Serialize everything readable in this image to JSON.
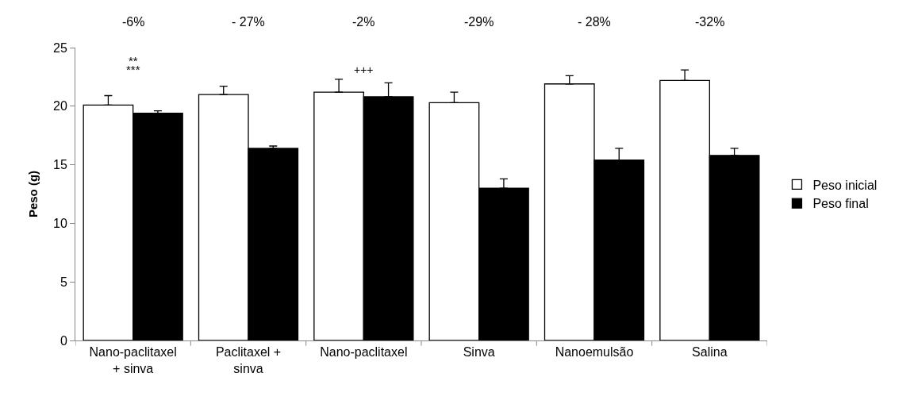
{
  "chart_data": {
    "type": "bar",
    "ylabel": "Peso (g)",
    "categories": [
      "Nano-paclitaxel\n+ sinva",
      "Paclitaxel +\nsinva",
      "Nano-paclitaxel",
      "Sinva",
      "Nanoemulsão",
      "Salina"
    ],
    "series": [
      {
        "name": "Peso inicial",
        "color": "#ffffff",
        "values": [
          20.1,
          21.0,
          21.2,
          20.3,
          21.9,
          22.2
        ],
        "errors": [
          [
            20.1,
            20.9
          ],
          [
            21.0,
            21.7
          ],
          [
            21.2,
            22.3
          ],
          [
            20.3,
            21.2
          ],
          [
            21.9,
            22.6
          ],
          [
            22.2,
            23.1
          ]
        ]
      },
      {
        "name": "Peso final",
        "color": "#000000",
        "values": [
          19.4,
          16.4,
          20.8,
          13.0,
          15.4,
          15.8
        ],
        "errors": [
          [
            19.4,
            19.6
          ],
          [
            16.4,
            16.6
          ],
          [
            20.8,
            22.0
          ],
          [
            13.0,
            13.8
          ],
          [
            15.4,
            16.4
          ],
          [
            15.8,
            16.4
          ]
        ]
      }
    ],
    "ylim": [
      0,
      25
    ],
    "yticks": [
      0,
      5,
      10,
      15,
      20,
      25
    ],
    "grid": false,
    "legend": "right",
    "annotations": [
      "-6%",
      "- 27%",
      "-2%",
      "-29%",
      "- 28%",
      "-32%",
      "**",
      "***",
      "+++"
    ]
  }
}
